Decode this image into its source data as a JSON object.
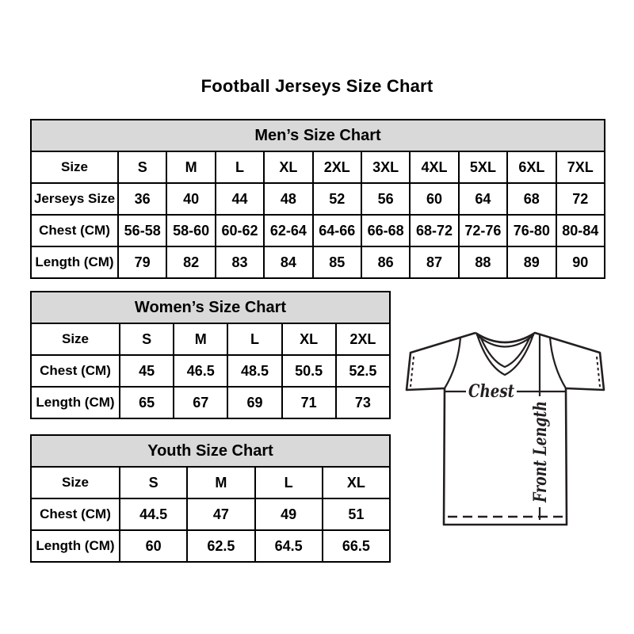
{
  "page_title": "Football Jerseys Size Chart",
  "chart_data": [
    {
      "type": "table",
      "title": "Men’s Size Chart",
      "columns": [
        "Size",
        "S",
        "M",
        "L",
        "XL",
        "2XL",
        "3XL",
        "4XL",
        "5XL",
        "6XL",
        "7XL"
      ],
      "rows": [
        [
          "Jerseys Size",
          "36",
          "40",
          "44",
          "48",
          "52",
          "56",
          "60",
          "64",
          "68",
          "72"
        ],
        [
          "Chest (CM)",
          "56-58",
          "58-60",
          "60-62",
          "62-64",
          "64-66",
          "66-68",
          "68-72",
          "72-76",
          "76-80",
          "80-84"
        ],
        [
          "Length (CM)",
          "79",
          "82",
          "83",
          "84",
          "85",
          "86",
          "87",
          "88",
          "89",
          "90"
        ]
      ]
    },
    {
      "type": "table",
      "title": "Women’s Size Chart",
      "columns": [
        "Size",
        "S",
        "M",
        "L",
        "XL",
        "2XL"
      ],
      "rows": [
        [
          "Chest (CM)",
          "45",
          "46.5",
          "48.5",
          "50.5",
          "52.5"
        ],
        [
          "Length (CM)",
          "65",
          "67",
          "69",
          "71",
          "73"
        ]
      ]
    },
    {
      "type": "table",
      "title": "Youth Size Chart",
      "columns": [
        "Size",
        "S",
        "M",
        "L",
        "XL"
      ],
      "rows": [
        [
          "Chest (CM)",
          "44.5",
          "47",
          "49",
          "51"
        ],
        [
          "Length (CM)",
          "60",
          "62.5",
          "64.5",
          "66.5"
        ]
      ]
    }
  ],
  "diagram": {
    "chest_label": "Chest",
    "front_length_label": "Front Length"
  },
  "colors": {
    "table_header_bg": "#d9d9d9",
    "table_border": "#000000",
    "text": "#000000",
    "jersey_outline": "#231f20"
  }
}
